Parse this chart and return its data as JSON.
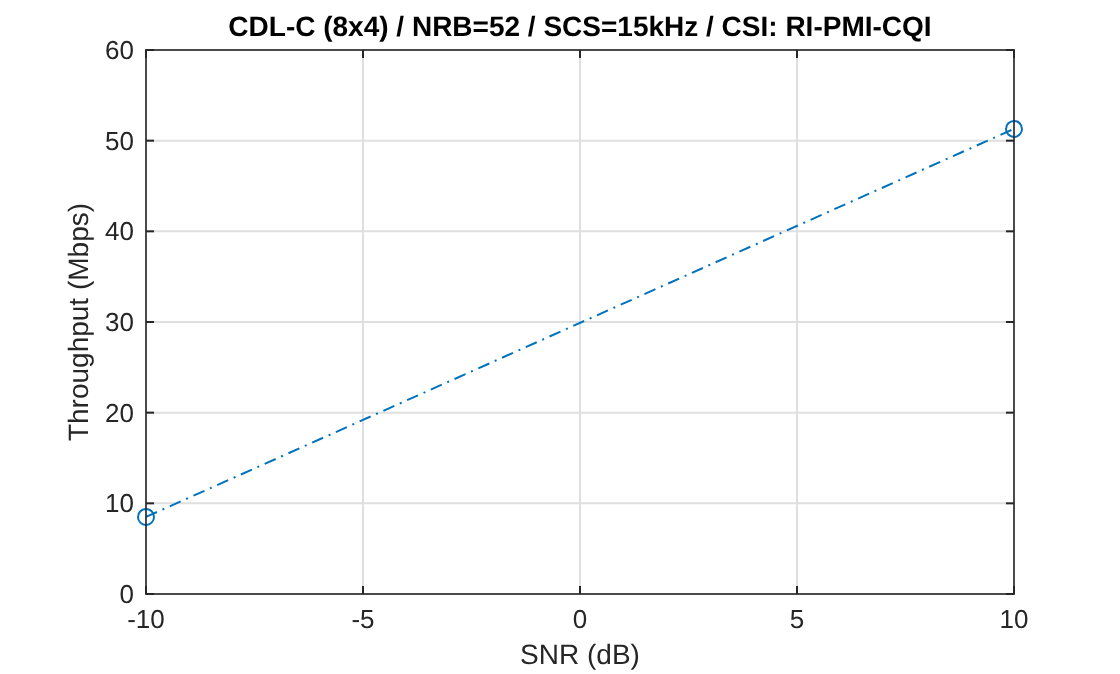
{
  "chart_data": {
    "type": "line",
    "title": "CDL-C (8x4) / NRB=52 / SCS=15kHz / CSI: RI-PMI-CQI",
    "xlabel": "SNR (dB)",
    "ylabel": "Throughput (Mbps)",
    "x": [
      -10,
      10
    ],
    "series": [
      {
        "color": "#0072bd",
        "values": [
          8.5,
          51.3
        ]
      }
    ],
    "xlim": [
      -10,
      10
    ],
    "xticks": [
      -10,
      -5,
      0,
      5,
      10
    ],
    "ylim": [
      0,
      60
    ],
    "yticks": [
      0,
      10,
      20,
      30,
      40,
      50,
      60
    ],
    "grid": true,
    "marker": "circle",
    "line_style": "dashed"
  }
}
